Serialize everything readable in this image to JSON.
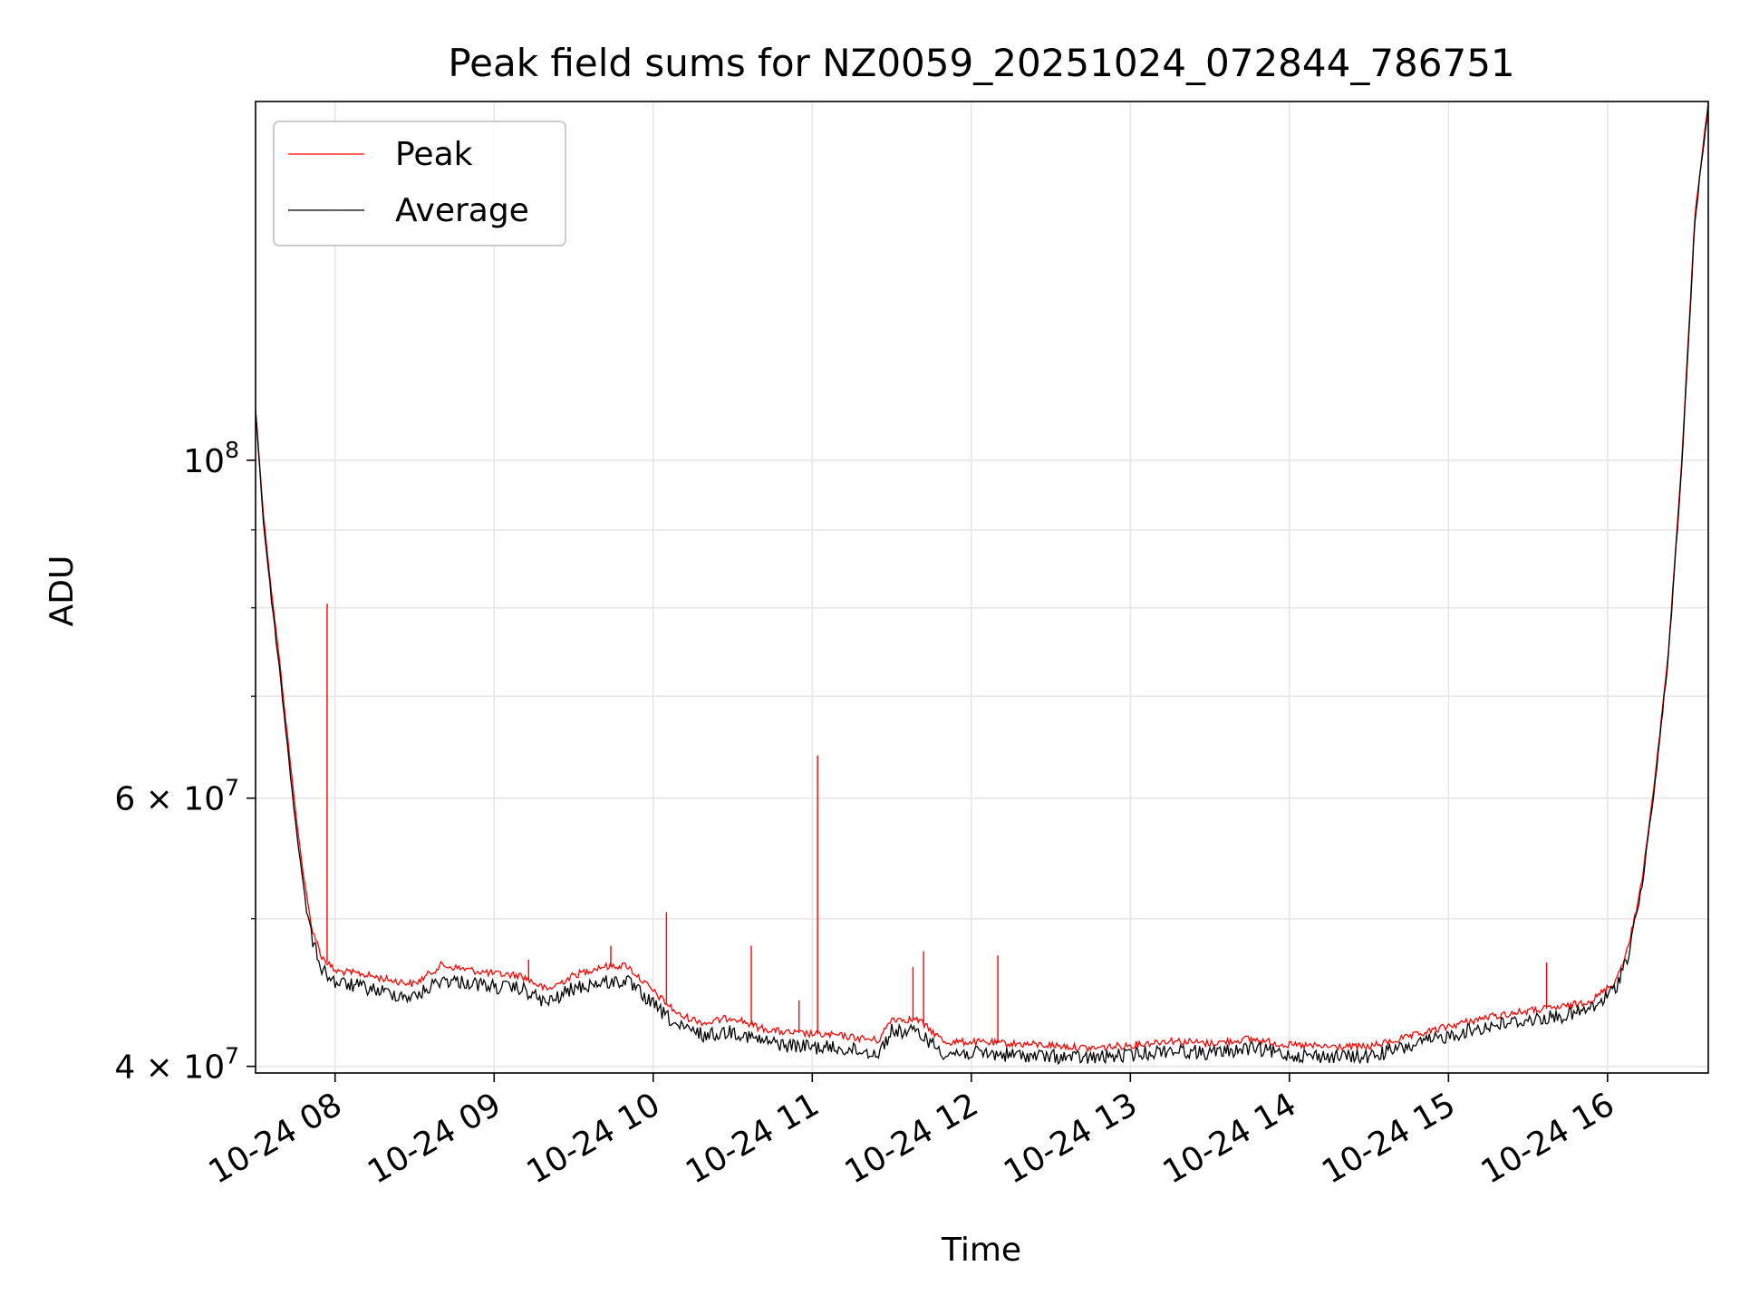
{
  "chart_data": {
    "type": "line",
    "title": "Peak field sums for NZ0059_20251024_072844_786751",
    "xlabel": "Time",
    "ylabel": "ADU",
    "x_range": [
      "2025-10-24 07:30",
      "2025-10-24 16:38"
    ],
    "y_range": [
      39600000,
      172000000
    ],
    "yscale": "log",
    "grid": true,
    "legend_position": "upper-left",
    "x_ticks": [
      {
        "time": "2025-10-24 08:00",
        "label": "10-24 08"
      },
      {
        "time": "2025-10-24 09:00",
        "label": "10-24 09"
      },
      {
        "time": "2025-10-24 10:00",
        "label": "10-24 10"
      },
      {
        "time": "2025-10-24 11:00",
        "label": "10-24 11"
      },
      {
        "time": "2025-10-24 12:00",
        "label": "10-24 12"
      },
      {
        "time": "2025-10-24 13:00",
        "label": "10-24 13"
      },
      {
        "time": "2025-10-24 14:00",
        "label": "10-24 14"
      },
      {
        "time": "2025-10-24 15:00",
        "label": "10-24 15"
      },
      {
        "time": "2025-10-24 16:00",
        "label": "10-24 16"
      }
    ],
    "y_major_ticks": [
      {
        "value": 40000000,
        "mantissa": "4",
        "exponent": "7"
      },
      {
        "value": 60000000,
        "mantissa": "6",
        "exponent": "7"
      },
      {
        "value": 100000000,
        "mantissa": "",
        "exponent": "8"
      }
    ],
    "y_minor_ticks": [
      50000000,
      70000000,
      80000000,
      90000000
    ],
    "series": [
      {
        "name": "Peak",
        "color": "#ff0000",
        "points": [
          [
            "2025-10-24 07:30",
            108000000
          ],
          [
            "2025-10-24 07:33",
            92000000
          ],
          [
            "2025-10-24 07:36",
            82000000
          ],
          [
            "2025-10-24 07:39",
            74000000
          ],
          [
            "2025-10-24 07:42",
            66000000
          ],
          [
            "2025-10-24 07:45",
            59000000
          ],
          [
            "2025-10-24 07:48",
            53500000
          ],
          [
            "2025-10-24 07:51",
            49500000
          ],
          [
            "2025-10-24 07:55",
            47200000
          ],
          [
            "2025-10-24 08:00",
            46200000
          ],
          [
            "2025-10-24 08:10",
            46000000
          ],
          [
            "2025-10-24 08:20",
            45600000
          ],
          [
            "2025-10-24 08:30",
            45300000
          ],
          [
            "2025-10-24 08:40",
            46600000
          ],
          [
            "2025-10-24 08:50",
            46300000
          ],
          [
            "2025-10-24 09:00",
            46000000
          ],
          [
            "2025-10-24 09:10",
            45900000
          ],
          [
            "2025-10-24 09:20",
            44900000
          ],
          [
            "2025-10-24 09:30",
            45900000
          ],
          [
            "2025-10-24 09:40",
            46500000
          ],
          [
            "2025-10-24 09:50",
            46600000
          ],
          [
            "2025-10-24 10:00",
            44800000
          ],
          [
            "2025-10-24 10:10",
            43200000
          ],
          [
            "2025-10-24 10:20",
            42700000
          ],
          [
            "2025-10-24 10:30",
            43100000
          ],
          [
            "2025-10-24 10:40",
            42400000
          ],
          [
            "2025-10-24 10:50",
            42100000
          ],
          [
            "2025-10-24 11:00",
            42000000
          ],
          [
            "2025-10-24 11:10",
            41900000
          ],
          [
            "2025-10-24 11:20",
            41700000
          ],
          [
            "2025-10-24 11:25",
            41600000
          ],
          [
            "2025-10-24 11:30",
            43000000
          ],
          [
            "2025-10-24 11:40",
            42900000
          ],
          [
            "2025-10-24 11:50",
            41500000
          ],
          [
            "2025-10-24 12:00",
            41500000
          ],
          [
            "2025-10-24 12:15",
            41400000
          ],
          [
            "2025-10-24 12:30",
            41300000
          ],
          [
            "2025-10-24 12:45",
            41100000
          ],
          [
            "2025-10-24 13:00",
            41300000
          ],
          [
            "2025-10-24 13:15",
            41600000
          ],
          [
            "2025-10-24 13:30",
            41400000
          ],
          [
            "2025-10-24 13:45",
            41700000
          ],
          [
            "2025-10-24 14:00",
            41300000
          ],
          [
            "2025-10-24 14:15",
            41200000
          ],
          [
            "2025-10-24 14:30",
            41200000
          ],
          [
            "2025-10-24 14:45",
            41800000
          ],
          [
            "2025-10-24 15:00",
            42500000
          ],
          [
            "2025-10-24 15:15",
            43100000
          ],
          [
            "2025-10-24 15:30",
            43500000
          ],
          [
            "2025-10-24 15:45",
            43800000
          ],
          [
            "2025-10-24 15:55",
            44300000
          ],
          [
            "2025-10-24 16:03",
            45500000
          ],
          [
            "2025-10-24 16:08",
            48000000
          ],
          [
            "2025-10-24 16:13",
            53000000
          ],
          [
            "2025-10-24 16:18",
            62000000
          ],
          [
            "2025-10-24 16:23",
            75000000
          ],
          [
            "2025-10-24 16:28",
            100000000
          ],
          [
            "2025-10-24 16:33",
            145000000
          ],
          [
            "2025-10-24 16:38",
            172000000
          ]
        ]
      },
      {
        "name": "Average",
        "color": "#000000",
        "points": [
          [
            "2025-10-24 07:30",
            108000000
          ],
          [
            "2025-10-24 07:33",
            91000000
          ],
          [
            "2025-10-24 07:36",
            81000000
          ],
          [
            "2025-10-24 07:39",
            73000000
          ],
          [
            "2025-10-24 07:42",
            65000000
          ],
          [
            "2025-10-24 07:45",
            58000000
          ],
          [
            "2025-10-24 07:48",
            52500000
          ],
          [
            "2025-10-24 07:51",
            48700000
          ],
          [
            "2025-10-24 07:55",
            46400000
          ],
          [
            "2025-10-24 08:00",
            45400000
          ],
          [
            "2025-10-24 08:10",
            45100000
          ],
          [
            "2025-10-24 08:20",
            44700000
          ],
          [
            "2025-10-24 08:30",
            44400000
          ],
          [
            "2025-10-24 08:40",
            45600000
          ],
          [
            "2025-10-24 08:50",
            45400000
          ],
          [
            "2025-10-24 09:00",
            45100000
          ],
          [
            "2025-10-24 09:10",
            45000000
          ],
          [
            "2025-10-24 09:20",
            44000000
          ],
          [
            "2025-10-24 09:30",
            45000000
          ],
          [
            "2025-10-24 09:40",
            45400000
          ],
          [
            "2025-10-24 09:50",
            45500000
          ],
          [
            "2025-10-24 10:00",
            43900000
          ],
          [
            "2025-10-24 10:10",
            42400000
          ],
          [
            "2025-10-24 10:20",
            41900000
          ],
          [
            "2025-10-24 10:30",
            42200000
          ],
          [
            "2025-10-24 10:40",
            41600000
          ],
          [
            "2025-10-24 10:50",
            41300000
          ],
          [
            "2025-10-24 11:00",
            41200000
          ],
          [
            "2025-10-24 11:10",
            41100000
          ],
          [
            "2025-10-24 11:20",
            40900000
          ],
          [
            "2025-10-24 11:25",
            40800000
          ],
          [
            "2025-10-24 11:30",
            42200000
          ],
          [
            "2025-10-24 11:40",
            42100000
          ],
          [
            "2025-10-24 11:50",
            40800000
          ],
          [
            "2025-10-24 12:00",
            40800000
          ],
          [
            "2025-10-24 12:15",
            40700000
          ],
          [
            "2025-10-24 12:30",
            40600000
          ],
          [
            "2025-10-24 12:45",
            40500000
          ],
          [
            "2025-10-24 13:00",
            40700000
          ],
          [
            "2025-10-24 13:15",
            41000000
          ],
          [
            "2025-10-24 13:30",
            40800000
          ],
          [
            "2025-10-24 13:45",
            41100000
          ],
          [
            "2025-10-24 14:00",
            40700000
          ],
          [
            "2025-10-24 14:15",
            40600000
          ],
          [
            "2025-10-24 14:30",
            40600000
          ],
          [
            "2025-10-24 14:45",
            41200000
          ],
          [
            "2025-10-24 15:00",
            41900000
          ],
          [
            "2025-10-24 15:15",
            42500000
          ],
          [
            "2025-10-24 15:30",
            42900000
          ],
          [
            "2025-10-24 15:45",
            43200000
          ],
          [
            "2025-10-24 15:55",
            43700000
          ],
          [
            "2025-10-24 16:03",
            45000000
          ],
          [
            "2025-10-24 16:08",
            47500000
          ],
          [
            "2025-10-24 16:13",
            52500000
          ],
          [
            "2025-10-24 16:18",
            61500000
          ],
          [
            "2025-10-24 16:23",
            74500000
          ],
          [
            "2025-10-24 16:28",
            99000000
          ],
          [
            "2025-10-24 16:33",
            144000000
          ],
          [
            "2025-10-24 16:38",
            171000000
          ]
        ]
      }
    ],
    "peak_spikes": [
      [
        "2025-10-24 07:57",
        80500000
      ],
      [
        "2025-10-24 09:13",
        47000000
      ],
      [
        "2025-10-24 09:44",
        48000000
      ],
      [
        "2025-10-24 10:05",
        50500000
      ],
      [
        "2025-10-24 10:37",
        48000000
      ],
      [
        "2025-10-24 10:55",
        44200000
      ],
      [
        "2025-10-24 11:02",
        64000000
      ],
      [
        "2025-10-24 11:38",
        46500000
      ],
      [
        "2025-10-24 11:42",
        47600000
      ],
      [
        "2025-10-24 12:10",
        47300000
      ],
      [
        "2025-10-24 15:37",
        46800000
      ]
    ]
  }
}
